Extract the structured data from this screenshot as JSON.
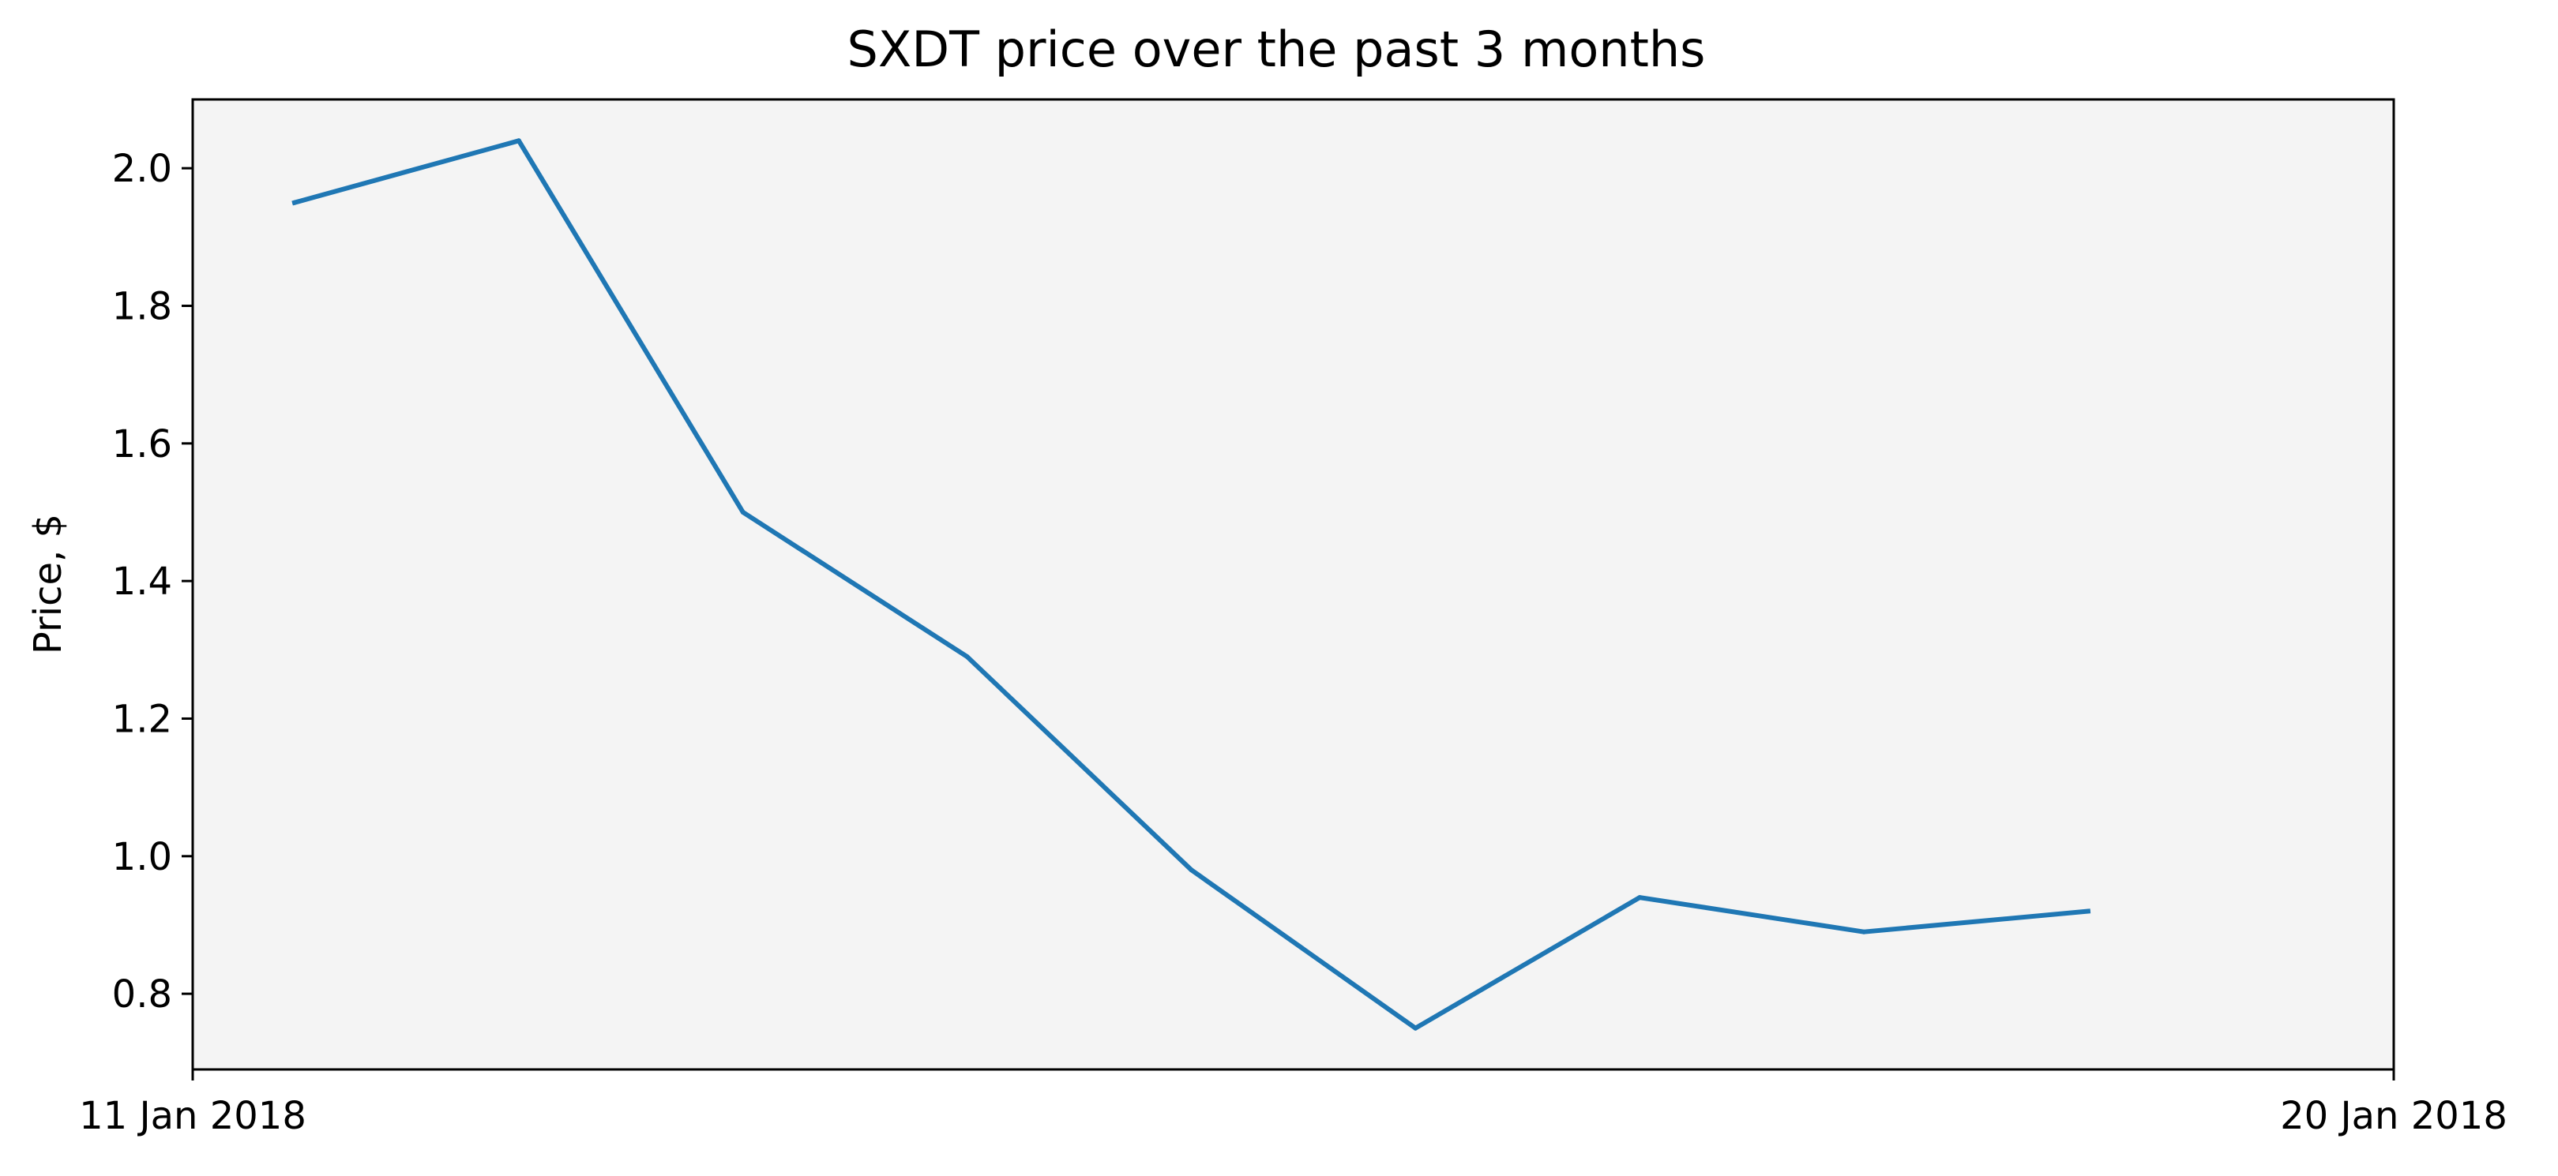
{
  "chart_data": {
    "type": "line",
    "title": "SXDT price over the past 3 months",
    "xlabel": "",
    "ylabel": "Price, $",
    "x_tick_labels": [
      "11 Jan 2018",
      "20 Jan 2018"
    ],
    "y_ticks": [
      0.8,
      1.0,
      1.2,
      1.4,
      1.6,
      1.8,
      2.0
    ],
    "y_tick_labels": [
      "0.8",
      "1.0",
      "1.2",
      "1.4",
      "1.6",
      "1.8",
      "2.0"
    ],
    "xlim": [
      "2018-01-11",
      "2018-01-20"
    ],
    "ylim": [
      0.69,
      2.1
    ],
    "grid": false,
    "series": [
      {
        "x": [
          "2018-01-11T10:00",
          "2018-01-12T08:00",
          "2018-01-13T06:00",
          "2018-01-14T04:00",
          "2018-01-15T02:00",
          "2018-01-16T00:00",
          "2018-01-16T22:00",
          "2018-01-17T20:00",
          "2018-01-18T18:00"
        ],
        "values": [
          1.95,
          2.04,
          1.5,
          1.29,
          0.98,
          0.75,
          0.94,
          0.89,
          0.92
        ]
      }
    ],
    "colors": {
      "line": "#1f77b4",
      "plot_background": "#f4f4f4",
      "axes": "#000000"
    }
  }
}
